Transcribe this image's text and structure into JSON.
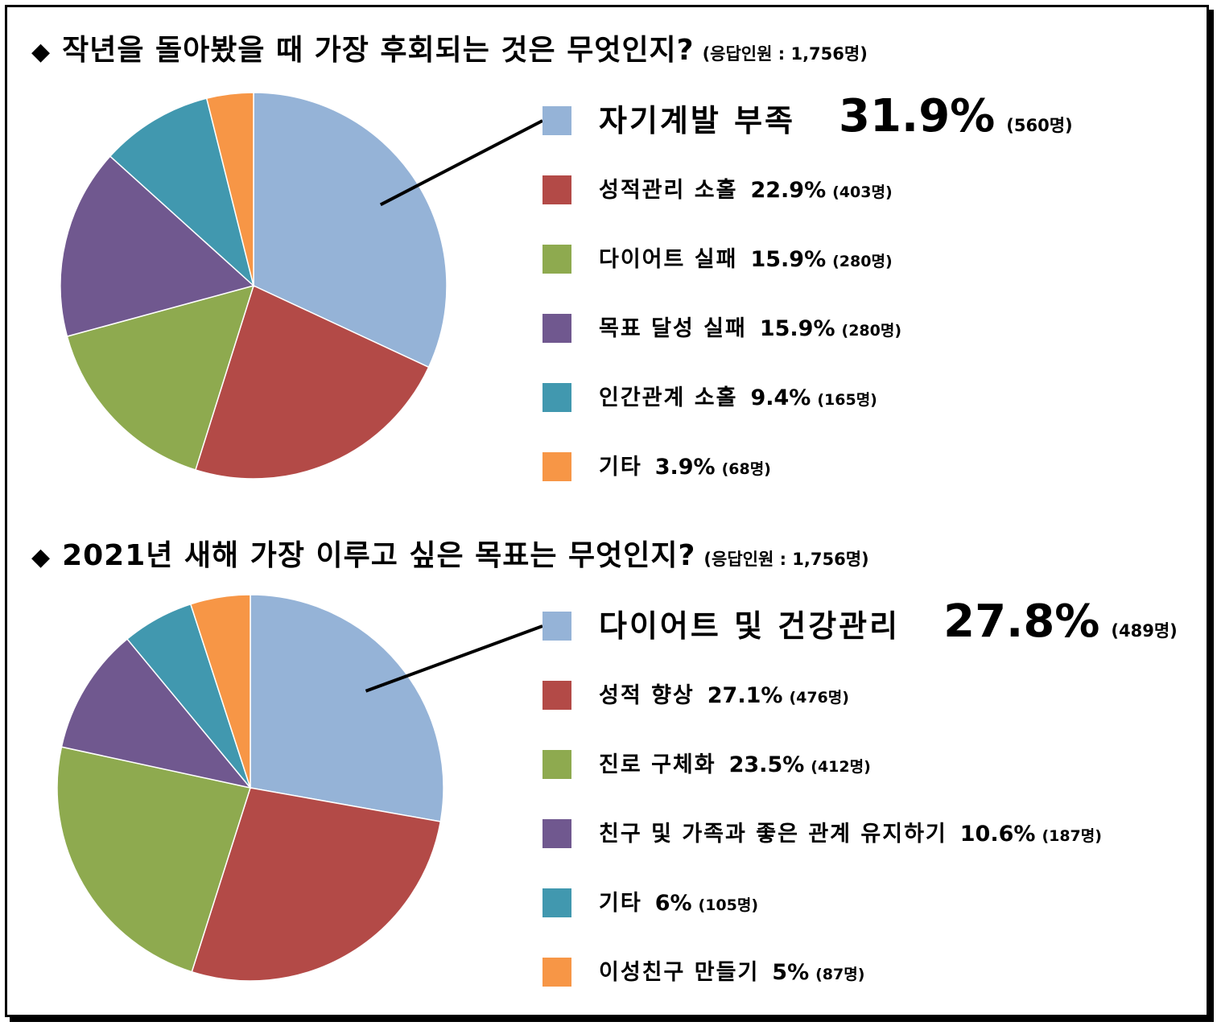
{
  "chart_data": [
    {
      "type": "pie",
      "title": "작년을 돌아봤을 때 가장 후회되는 것은 무엇인지?",
      "note": "(응답인원 : 1,756명)",
      "categories": [
        "자기계발 부족",
        "성적관리 소홀",
        "다이어트 실패",
        "목표 달성 실패",
        "인간관계 소홀",
        "기타"
      ],
      "values": [
        31.9,
        22.9,
        15.9,
        15.9,
        9.4,
        3.9
      ],
      "value_labels": [
        "31.9%",
        "22.9%",
        "15.9%",
        "15.9%",
        "9.4%",
        "3.9%"
      ],
      "counts": [
        "(560명)",
        "(403명)",
        "(280명)",
        "(280명)",
        "(165명)",
        "(68명)"
      ],
      "colors": [
        "#95b3d7",
        "#b34a47",
        "#8eaa4f",
        "#70588f",
        "#4198af",
        "#f79646"
      ],
      "legend_position": "right",
      "highlight": 0
    },
    {
      "type": "pie",
      "title": "2021년 새해 가장 이루고 싶은 목표는 무엇인지?",
      "note": "(응답인원 : 1,756명)",
      "categories": [
        "다이어트 및 건강관리",
        "성적 향상",
        "진로 구체화",
        "친구 및 가족과 좋은 관계 유지하기",
        "기타",
        "이성친구 만들기"
      ],
      "values": [
        27.8,
        27.1,
        23.5,
        10.6,
        6,
        5
      ],
      "value_labels": [
        "27.8%",
        "27.1%",
        "23.5%",
        "10.6%",
        "6%",
        "5%"
      ],
      "counts": [
        "(489명)",
        "(476명)",
        "(412명)",
        "(187명)",
        "(105명)",
        "(87명)"
      ],
      "colors": [
        "#95b3d7",
        "#b34a47",
        "#8eaa4f",
        "#70588f",
        "#4198af",
        "#f79646"
      ],
      "legend_position": "right",
      "highlight": 0
    }
  ]
}
